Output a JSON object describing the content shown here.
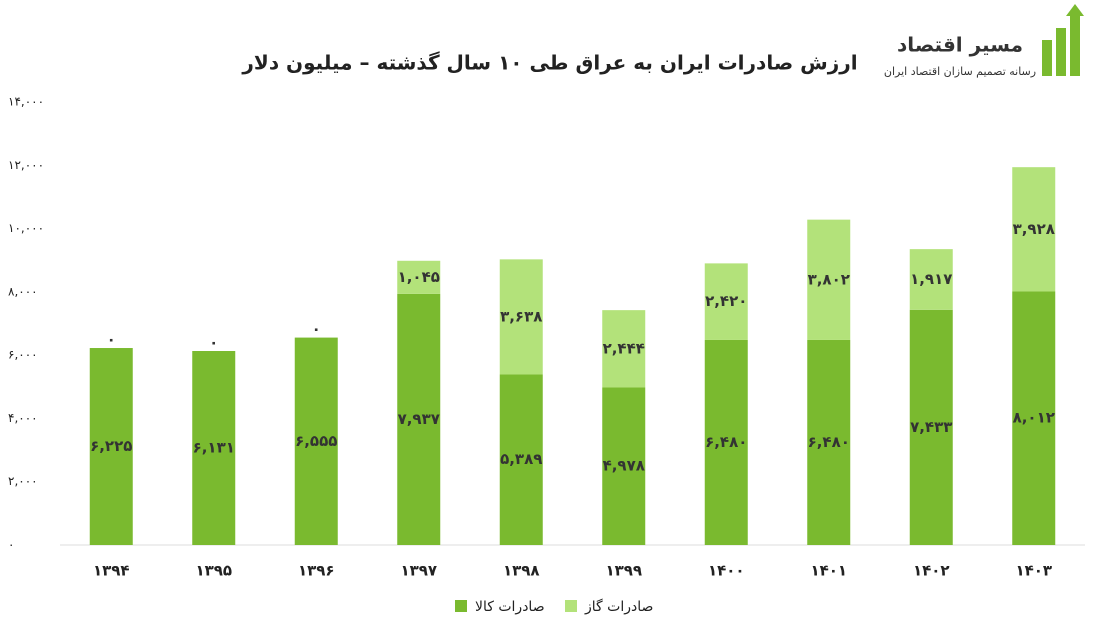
{
  "chart_data": {
    "type": "stacked_bar",
    "title": "ارزش صادرات ایران به عراق طی ۱۰ سال گذشته – میلیون دلار",
    "categories": [
      "۱۳۹۴",
      "۱۳۹۵",
      "۱۳۹۶",
      "۱۳۹۷",
      "۱۳۹۸",
      "۱۳۹۹",
      "۱۴۰۰",
      "۱۴۰۱",
      "۱۴۰۲",
      "۱۴۰۳"
    ],
    "series": [
      {
        "name": "صادرات کالا",
        "color": "#7aba2f",
        "values": [
          6225,
          6131,
          6555,
          7937,
          5389,
          4978,
          6480,
          6480,
          7433,
          8012
        ],
        "value_labels": [
          "۶,۲۲۵",
          "۶,۱۳۱",
          "۶,۵۵۵",
          "۷,۹۳۷",
          "۵,۳۸۹",
          "۴,۹۷۸",
          "۶,۴۸۰",
          "۶,۴۸۰",
          "۷,۴۳۳",
          "۸,۰۱۲"
        ]
      },
      {
        "name": "صادرات گاز",
        "color": "#b3e27a",
        "values": [
          0,
          0,
          0,
          1045,
          3638,
          2444,
          2420,
          3802,
          1917,
          3928
        ],
        "value_labels": [
          "۰",
          "۰",
          "۰",
          "۱,۰۴۵",
          "۳,۶۳۸",
          "۲,۴۴۴",
          "۲,۴۲۰",
          "۳,۸۰۲",
          "۱,۹۱۷",
          "۳,۹۲۸"
        ]
      }
    ],
    "ylim": [
      0,
      14000
    ],
    "yticks": [
      {
        "value": 0,
        "label": "۰"
      },
      {
        "value": 2000,
        "label": "۲,۰۰۰"
      },
      {
        "value": 4000,
        "label": "۴,۰۰۰"
      },
      {
        "value": 6000,
        "label": "۶,۰۰۰"
      },
      {
        "value": 8000,
        "label": "۸,۰۰۰"
      },
      {
        "value": 10000,
        "label": "۱۰,۰۰۰"
      },
      {
        "value": 12000,
        "label": "۱۲,۰۰۰"
      },
      {
        "value": 14000,
        "label": "۱۴,۰۰۰"
      }
    ],
    "grid": false,
    "legend": "bottom"
  },
  "logo": {
    "name": "مسیر اقتصاد",
    "tagline": "رسانه تصمیم سازان اقتصاد ایران"
  }
}
